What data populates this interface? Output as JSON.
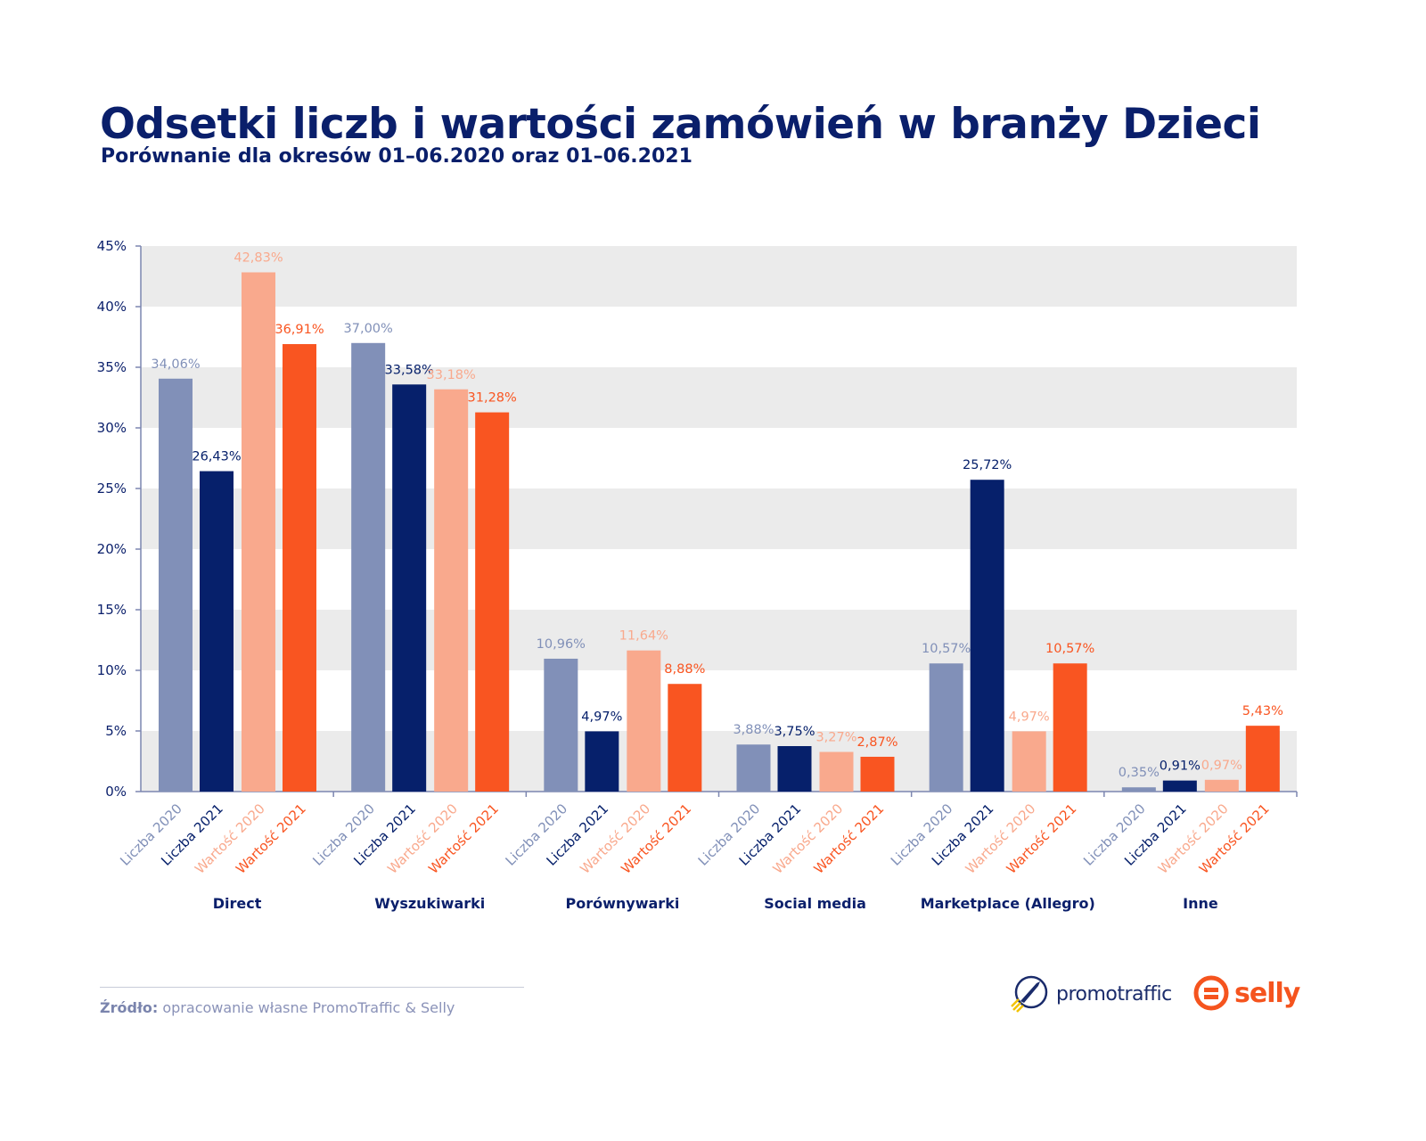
{
  "title": "Odsetki liczb i wartości zamówień w branży Dzieci",
  "subtitle": "Porównanie dla okresów 01–06.2020 oraz 01–06.2021",
  "source_label": "Źródło:",
  "source_text": "opracowanie własne PromoTraffic & Selly",
  "logos": {
    "promotraffic": "promotraffic",
    "selly": "selly"
  },
  "chart_data": {
    "type": "bar",
    "title": "Odsetki liczb i wartości zamówień w branży Dzieci",
    "categories": [
      "Direct",
      "Wyszukiwarki",
      "Porównywarki",
      "Social media",
      "Marketplace (Allegro)",
      "Inne"
    ],
    "series": [
      {
        "name": "Liczba 2020",
        "color": "#8190b8",
        "values": [
          34.06,
          37.0,
          10.96,
          3.88,
          10.57,
          0.35
        ],
        "labels": [
          "34,06%",
          "37,00%",
          "10,96%",
          "3,88%",
          "10,57%",
          "0,35%"
        ]
      },
      {
        "name": "Liczba 2021",
        "color": "#06206b",
        "values": [
          26.43,
          33.58,
          4.97,
          3.75,
          25.72,
          0.91
        ],
        "labels": [
          "26,43%",
          "33,58%",
          "4,97%",
          "3,75%",
          "25,72%",
          "0,91%"
        ]
      },
      {
        "name": "Wartość 2020",
        "color": "#f9a98d",
        "values": [
          42.83,
          33.18,
          11.64,
          3.27,
          4.97,
          0.97
        ],
        "labels": [
          "42,83%",
          "33,18%",
          "11,64%",
          "3,27%",
          "4,97%",
          "0,97%"
        ]
      },
      {
        "name": "Wartość 2021",
        "color": "#f95521",
        "values": [
          36.91,
          31.28,
          8.88,
          2.87,
          10.57,
          5.43
        ],
        "labels": [
          "36,91%",
          "31,28%",
          "8,88%",
          "2,87%",
          "10,57%",
          "5,43%"
        ]
      }
    ],
    "ylim": [
      0,
      45
    ],
    "yticks": [
      0,
      5,
      10,
      15,
      20,
      25,
      30,
      35,
      40,
      45
    ],
    "ytick_labels": [
      "0%",
      "5%",
      "10%",
      "15%",
      "20%",
      "25%",
      "30%",
      "35%",
      "40%",
      "45%"
    ],
    "grid": "alternating bands",
    "xlabel": "",
    "ylabel": ""
  }
}
